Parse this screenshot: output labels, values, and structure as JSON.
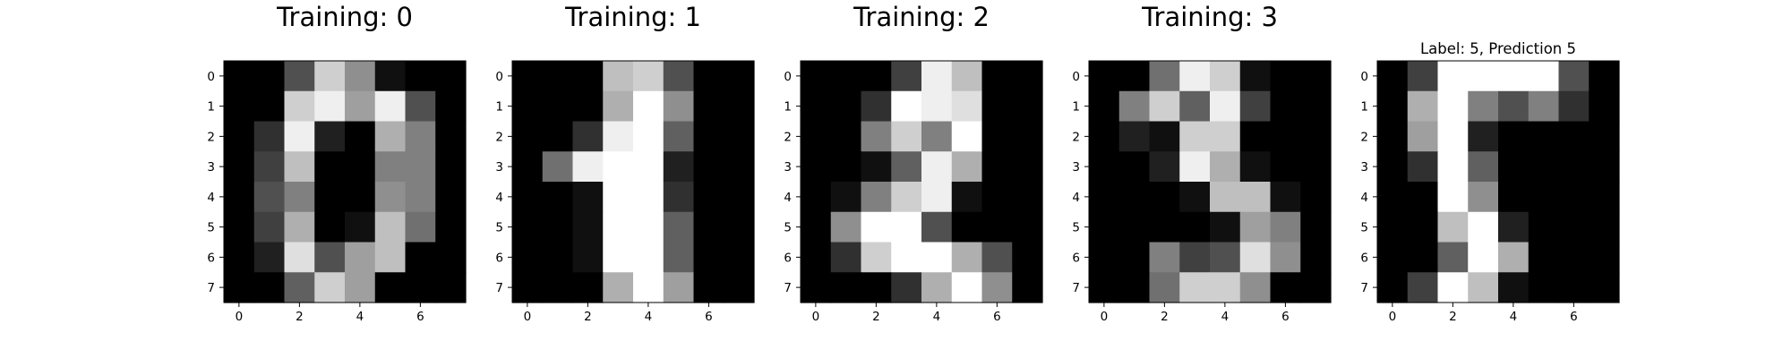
{
  "figure": {
    "background": "#ffffff",
    "colormap": "gray",
    "tick_color": "#000000"
  },
  "chart_data": [
    {
      "type": "heatmap",
      "title": "Training: 0",
      "title_style": "large",
      "xlabel": "",
      "ylabel": "",
      "x_ticks": [
        0,
        2,
        4,
        6
      ],
      "y_ticks": [
        0,
        1,
        2,
        3,
        4,
        5,
        6,
        7
      ],
      "xlim": [
        -0.5,
        7.5
      ],
      "ylim": [
        7.5,
        -0.5
      ],
      "value_range": [
        0,
        16
      ],
      "grid": false,
      "values": [
        [
          0,
          0,
          5,
          13,
          9,
          1,
          0,
          0
        ],
        [
          0,
          0,
          13,
          15,
          10,
          15,
          5,
          0
        ],
        [
          0,
          3,
          15,
          2,
          0,
          11,
          8,
          0
        ],
        [
          0,
          4,
          12,
          0,
          0,
          8,
          8,
          0
        ],
        [
          0,
          5,
          8,
          0,
          0,
          9,
          8,
          0
        ],
        [
          0,
          4,
          11,
          0,
          1,
          12,
          7,
          0
        ],
        [
          0,
          2,
          14,
          5,
          10,
          12,
          0,
          0
        ],
        [
          0,
          0,
          6,
          13,
          10,
          0,
          0,
          0
        ]
      ]
    },
    {
      "type": "heatmap",
      "title": "Training: 1",
      "title_style": "large",
      "xlabel": "",
      "ylabel": "",
      "x_ticks": [
        0,
        2,
        4,
        6
      ],
      "y_ticks": [
        0,
        1,
        2,
        3,
        4,
        5,
        6,
        7
      ],
      "xlim": [
        -0.5,
        7.5
      ],
      "ylim": [
        7.5,
        -0.5
      ],
      "value_range": [
        0,
        16
      ],
      "grid": false,
      "values": [
        [
          0,
          0,
          0,
          12,
          13,
          5,
          0,
          0
        ],
        [
          0,
          0,
          0,
          11,
          16,
          9,
          0,
          0
        ],
        [
          0,
          0,
          3,
          15,
          16,
          6,
          0,
          0
        ],
        [
          0,
          7,
          15,
          16,
          16,
          2,
          0,
          0
        ],
        [
          0,
          0,
          1,
          16,
          16,
          3,
          0,
          0
        ],
        [
          0,
          0,
          1,
          16,
          16,
          6,
          0,
          0
        ],
        [
          0,
          0,
          1,
          16,
          16,
          6,
          0,
          0
        ],
        [
          0,
          0,
          0,
          11,
          16,
          10,
          0,
          0
        ]
      ]
    },
    {
      "type": "heatmap",
      "title": "Training: 2",
      "title_style": "large",
      "xlabel": "",
      "ylabel": "",
      "x_ticks": [
        0,
        2,
        4,
        6
      ],
      "y_ticks": [
        0,
        1,
        2,
        3,
        4,
        5,
        6,
        7
      ],
      "xlim": [
        -0.5,
        7.5
      ],
      "ylim": [
        7.5,
        -0.5
      ],
      "value_range": [
        0,
        16
      ],
      "grid": false,
      "values": [
        [
          0,
          0,
          0,
          4,
          15,
          12,
          0,
          0
        ],
        [
          0,
          0,
          3,
          16,
          15,
          14,
          0,
          0
        ],
        [
          0,
          0,
          8,
          13,
          8,
          16,
          0,
          0
        ],
        [
          0,
          0,
          1,
          6,
          15,
          11,
          0,
          0
        ],
        [
          0,
          1,
          8,
          13,
          15,
          1,
          0,
          0
        ],
        [
          0,
          9,
          16,
          16,
          5,
          0,
          0,
          0
        ],
        [
          0,
          3,
          13,
          16,
          16,
          11,
          5,
          0
        ],
        [
          0,
          0,
          0,
          3,
          11,
          16,
          9,
          0
        ]
      ]
    },
    {
      "type": "heatmap",
      "title": "Training: 3",
      "title_style": "large",
      "xlabel": "",
      "ylabel": "",
      "x_ticks": [
        0,
        2,
        4,
        6
      ],
      "y_ticks": [
        0,
        1,
        2,
        3,
        4,
        5,
        6,
        7
      ],
      "xlim": [
        -0.5,
        7.5
      ],
      "ylim": [
        7.5,
        -0.5
      ],
      "value_range": [
        0,
        16
      ],
      "grid": false,
      "values": [
        [
          0,
          0,
          7,
          15,
          13,
          1,
          0,
          0
        ],
        [
          0,
          8,
          13,
          6,
          15,
          4,
          0,
          0
        ],
        [
          0,
          2,
          1,
          13,
          13,
          0,
          0,
          0
        ],
        [
          0,
          0,
          2,
          15,
          11,
          1,
          0,
          0
        ],
        [
          0,
          0,
          0,
          1,
          12,
          12,
          1,
          0
        ],
        [
          0,
          0,
          0,
          0,
          1,
          10,
          8,
          0
        ],
        [
          0,
          0,
          8,
          4,
          5,
          14,
          9,
          0
        ],
        [
          0,
          0,
          7,
          13,
          13,
          9,
          0,
          0
        ]
      ]
    },
    {
      "type": "heatmap",
      "title": "Label: 5, Prediction 5",
      "title_style": "small",
      "xlabel": "",
      "ylabel": "",
      "x_ticks": [
        0,
        2,
        4,
        6
      ],
      "y_ticks": [
        0,
        1,
        2,
        3,
        4,
        5,
        6,
        7
      ],
      "xlim": [
        -0.5,
        7.5
      ],
      "ylim": [
        7.5,
        -0.5
      ],
      "value_range": [
        0,
        16
      ],
      "grid": false,
      "values": [
        [
          0,
          4,
          16,
          16,
          16,
          16,
          5,
          0
        ],
        [
          0,
          11,
          16,
          8,
          5,
          8,
          3,
          0
        ],
        [
          0,
          10,
          16,
          2,
          0,
          0,
          0,
          0
        ],
        [
          0,
          3,
          16,
          6,
          0,
          0,
          0,
          0
        ],
        [
          0,
          0,
          16,
          9,
          0,
          0,
          0,
          0
        ],
        [
          0,
          0,
          12,
          16,
          2,
          0,
          0,
          0
        ],
        [
          0,
          0,
          6,
          16,
          11,
          0,
          0,
          0
        ],
        [
          0,
          4,
          16,
          12,
          1,
          0,
          0,
          0
        ]
      ]
    }
  ]
}
